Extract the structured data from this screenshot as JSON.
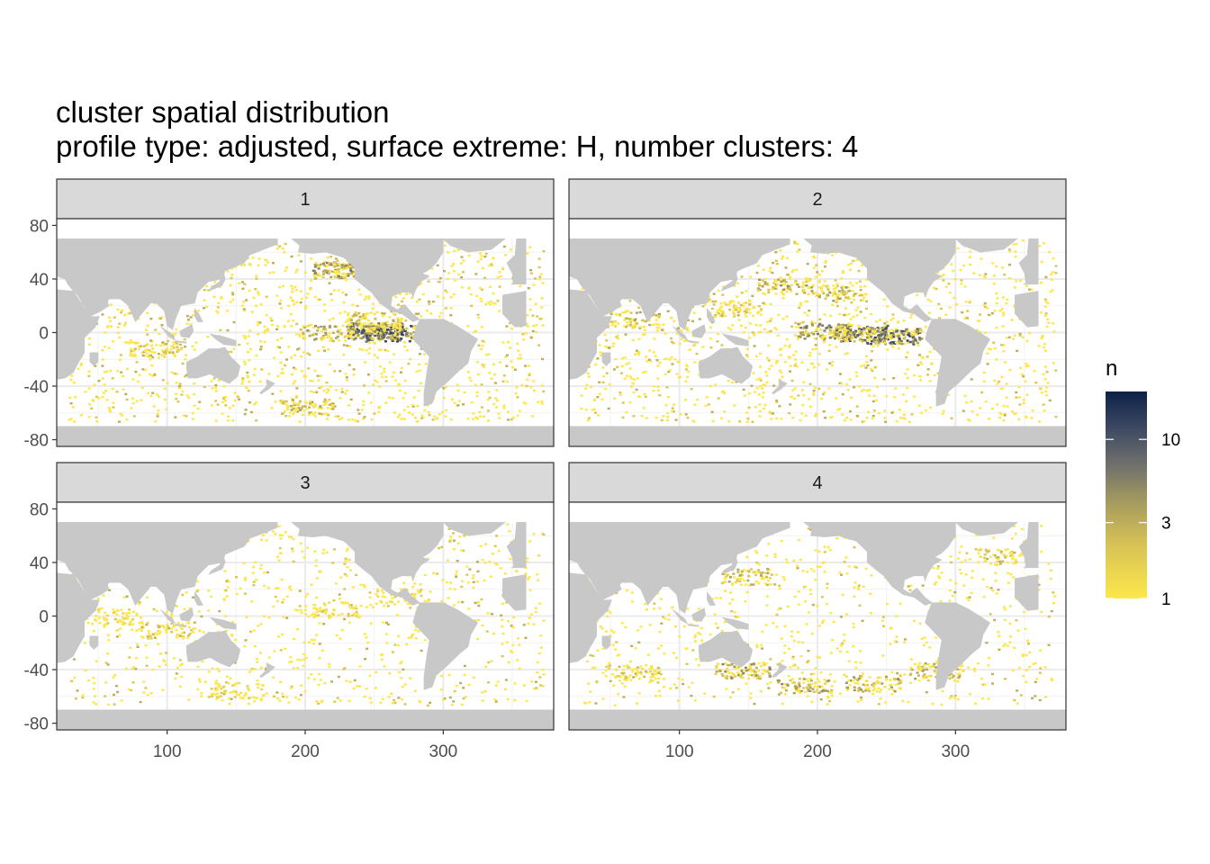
{
  "chart_data": {
    "type": "heatmap",
    "title": "cluster spatial distribution",
    "subtitle": "profile type: adjusted, surface extreme: H, number clusters: 4",
    "xlabel": "",
    "ylabel": "",
    "xlim": [
      20,
      380
    ],
    "ylim": [
      -85,
      85
    ],
    "x_ticks": [
      100,
      200,
      300
    ],
    "y_ticks": [
      80,
      40,
      0,
      -40,
      -80
    ],
    "x_tick_labels": [
      "100",
      "200",
      "300"
    ],
    "y_tick_labels": [
      "80",
      "40",
      "0",
      "-40",
      "-80"
    ],
    "grid": true,
    "legend_placement": "right",
    "legend": {
      "title": "n",
      "scale": "log",
      "range": [
        1,
        20
      ],
      "breaks": [
        1,
        3,
        10
      ],
      "break_labels": [
        "1",
        "3",
        "10"
      ],
      "low_color": "#fde74c",
      "mid_color": "#7a7462",
      "high_color": "#0d2147"
    },
    "land_color": "#c8c8c8",
    "panels": [
      {
        "label": "1",
        "hotspots": [
          {
            "lon": 225,
            "lat": 47,
            "n": 8
          },
          {
            "lon": 240,
            "lat": 48,
            "n": 6
          },
          {
            "lon": 250,
            "lat": 2,
            "n": 12
          },
          {
            "lon": 262,
            "lat": 0,
            "n": 15
          },
          {
            "lon": 215,
            "lat": 0,
            "n": 5
          },
          {
            "lon": 250,
            "lat": 10,
            "n": 4
          },
          {
            "lon": 90,
            "lat": -12,
            "n": 3
          },
          {
            "lon": 200,
            "lat": -55,
            "n": 4
          }
        ]
      },
      {
        "label": "2",
        "hotspots": [
          {
            "lon": 230,
            "lat": 0,
            "n": 12
          },
          {
            "lon": 255,
            "lat": -2,
            "n": 14
          },
          {
            "lon": 205,
            "lat": 2,
            "n": 8
          },
          {
            "lon": 175,
            "lat": 35,
            "n": 5
          },
          {
            "lon": 215,
            "lat": 30,
            "n": 5
          },
          {
            "lon": 65,
            "lat": 10,
            "n": 4
          },
          {
            "lon": 140,
            "lat": 18,
            "n": 3
          }
        ]
      },
      {
        "label": "3",
        "hotspots": [
          {
            "lon": 60,
            "lat": 0,
            "n": 2
          },
          {
            "lon": 100,
            "lat": -10,
            "n": 3
          },
          {
            "lon": 220,
            "lat": 5,
            "n": 2
          },
          {
            "lon": 270,
            "lat": 15,
            "n": 2
          },
          {
            "lon": 150,
            "lat": -55,
            "n": 2
          }
        ]
      },
      {
        "label": "4",
        "hotspots": [
          {
            "lon": 190,
            "lat": -52,
            "n": 5
          },
          {
            "lon": 240,
            "lat": -50,
            "n": 5
          },
          {
            "lon": 145,
            "lat": -40,
            "n": 6
          },
          {
            "lon": 285,
            "lat": -40,
            "n": 4
          },
          {
            "lon": 150,
            "lat": 30,
            "n": 4
          },
          {
            "lon": 335,
            "lat": 45,
            "n": 3
          },
          {
            "lon": 65,
            "lat": -42,
            "n": 3
          }
        ]
      }
    ]
  }
}
